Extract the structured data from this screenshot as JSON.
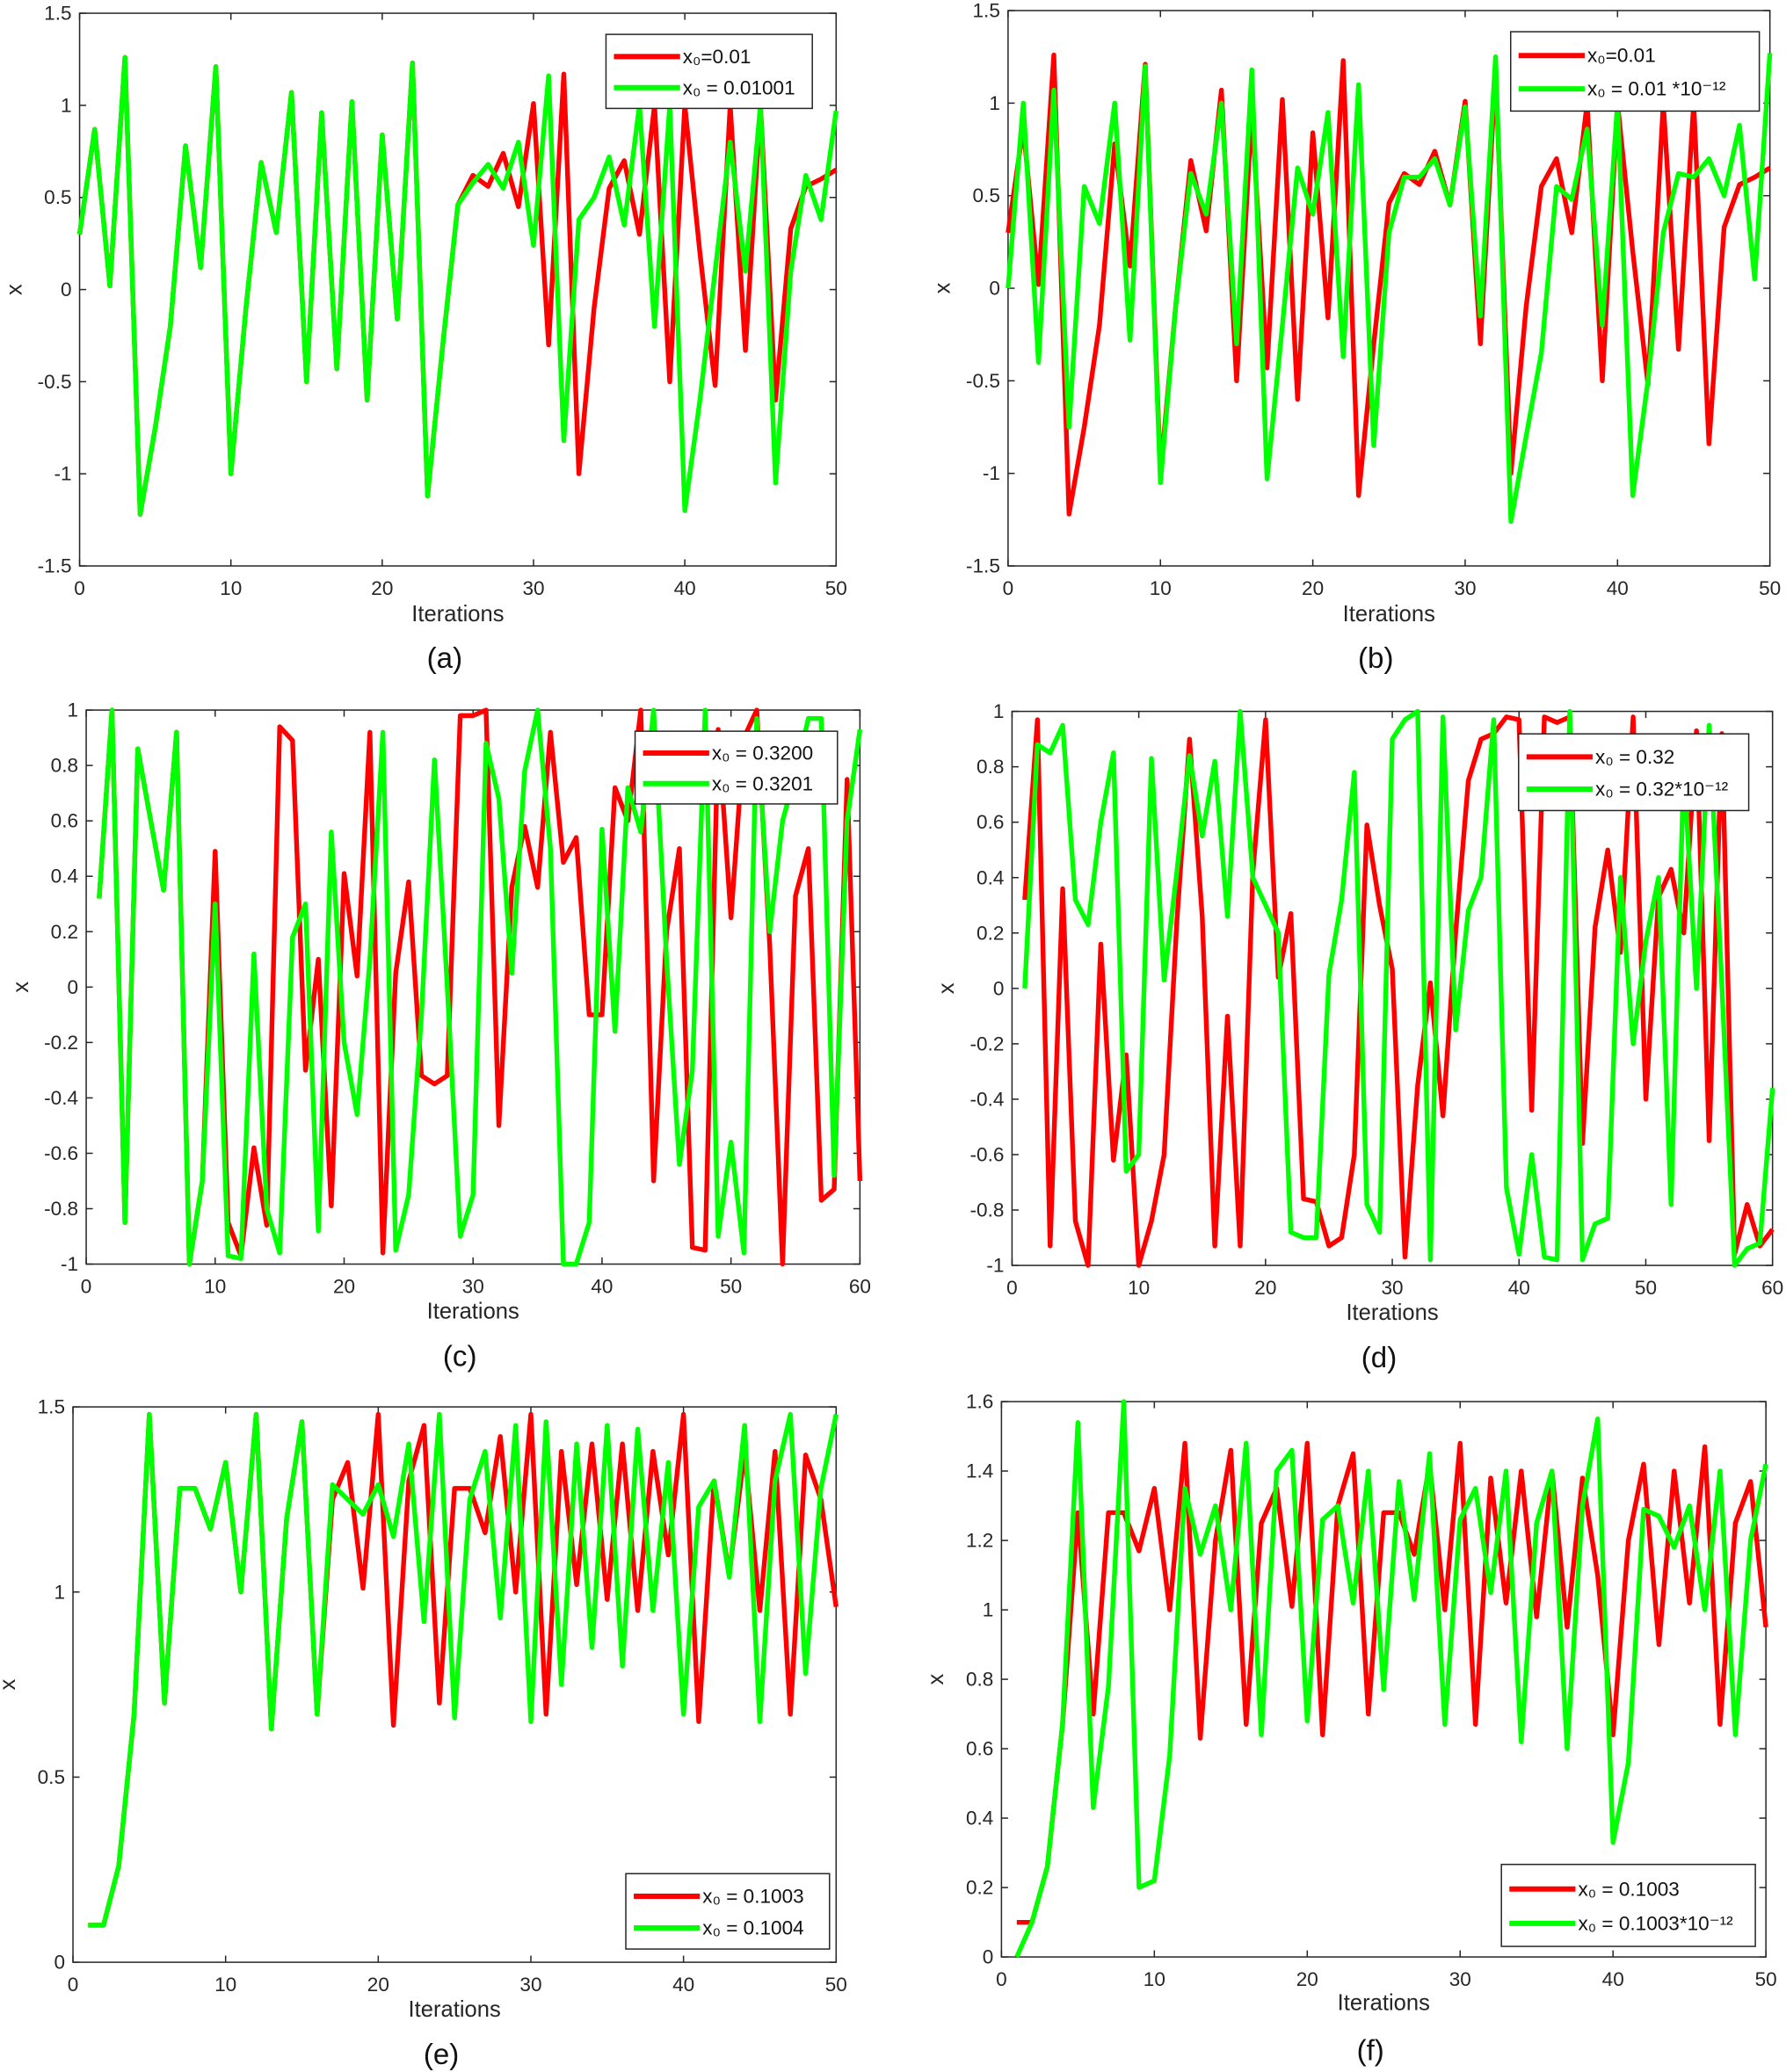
{
  "colors": {
    "series1": "#ff0000",
    "series2": "#00ff00",
    "axes": "#262626"
  },
  "chart_data": [
    {
      "type": "line",
      "caption": "(a)",
      "xlabel": "Iterations",
      "ylabel": "x",
      "xlim": [
        0,
        50
      ],
      "ylim": [
        -1.5,
        1.5
      ],
      "xticks": [
        0,
        10,
        20,
        30,
        40,
        50
      ],
      "yticks": [
        -1.5,
        -1,
        -0.5,
        0,
        0.5,
        1,
        1.5
      ],
      "legend_position": "top-right",
      "grid": false,
      "series": [
        {
          "name": "x₀=0.01",
          "color": "#ff0000",
          "x_start": 0,
          "values": [
            0.3,
            0.87,
            0.02,
            1.26,
            -1.22,
            -0.75,
            -0.2,
            0.78,
            0.12,
            1.21,
            -1.0,
            -0.1,
            0.69,
            0.31,
            1.07,
            -0.5,
            0.96,
            -0.43,
            1.02,
            -0.6,
            0.84,
            -0.16,
            1.23,
            -1.12,
            -0.3,
            0.46,
            0.62,
            0.56,
            0.74,
            0.45,
            1.01,
            -0.3,
            1.17,
            -1.0,
            -0.1,
            0.55,
            0.7,
            0.3,
            1.0,
            -0.5,
            1.0,
            0.2,
            -0.52,
            1.0,
            -0.33,
            1.0,
            -0.6,
            0.33,
            0.56,
            0.6,
            0.65
          ]
        },
        {
          "name": "x₀ = 0.01001",
          "color": "#00ff00",
          "x_start": 0,
          "values": [
            0.3,
            0.87,
            0.02,
            1.26,
            -1.22,
            -0.75,
            -0.2,
            0.78,
            0.12,
            1.21,
            -1.0,
            -0.1,
            0.69,
            0.31,
            1.07,
            -0.5,
            0.96,
            -0.43,
            1.02,
            -0.6,
            0.84,
            -0.16,
            1.23,
            -1.12,
            -0.3,
            0.46,
            0.58,
            0.68,
            0.55,
            0.8,
            0.24,
            1.16,
            -0.82,
            0.38,
            0.5,
            0.72,
            0.35,
            1.0,
            -0.2,
            1.0,
            -1.2,
            -0.6,
            0.1,
            0.8,
            0.1,
            1.0,
            -1.05,
            0.1,
            0.62,
            0.38,
            0.97
          ]
        }
      ]
    },
    {
      "type": "line",
      "caption": "(b)",
      "xlabel": "Iterations",
      "ylabel": "x",
      "xlim": [
        0,
        50
      ],
      "ylim": [
        -1.5,
        1.5
      ],
      "xticks": [
        0,
        10,
        20,
        30,
        40,
        50
      ],
      "yticks": [
        -1.5,
        -1,
        -0.5,
        0,
        0.5,
        1,
        1.5
      ],
      "legend_position": "top-right",
      "grid": false,
      "series": [
        {
          "name": "x₀=0.01",
          "color": "#ff0000",
          "x_start": 0,
          "values": [
            0.3,
            0.87,
            0.02,
            1.26,
            -1.22,
            -0.75,
            -0.2,
            0.78,
            0.12,
            1.21,
            -1.0,
            -0.1,
            0.69,
            0.31,
            1.07,
            -0.5,
            0.96,
            -0.43,
            1.02,
            -0.6,
            0.84,
            -0.16,
            1.23,
            -1.12,
            -0.3,
            0.46,
            0.62,
            0.56,
            0.74,
            0.45,
            1.01,
            -0.3,
            1.17,
            -1.0,
            -0.1,
            0.55,
            0.7,
            0.3,
            1.0,
            -0.5,
            1.0,
            0.2,
            -0.52,
            1.0,
            -0.33,
            1.0,
            -0.84,
            0.33,
            0.56,
            0.6,
            0.65
          ]
        },
        {
          "name": "x₀ = 0.01 *10⁻¹²",
          "color": "#00ff00",
          "x_start": 0,
          "values": [
            0.0,
            1.0,
            -0.4,
            1.07,
            -0.75,
            0.55,
            0.35,
            1.0,
            -0.28,
            1.2,
            -1.05,
            -0.1,
            0.62,
            0.4,
            1.0,
            -0.3,
            1.18,
            -1.03,
            -0.2,
            0.65,
            0.4,
            0.95,
            -0.37,
            1.1,
            -0.85,
            0.3,
            0.6,
            0.6,
            0.7,
            0.45,
            0.98,
            -0.15,
            1.25,
            -1.26,
            -0.8,
            -0.35,
            0.55,
            0.48,
            0.86,
            -0.2,
            1.0,
            -1.12,
            -0.5,
            0.3,
            0.62,
            0.6,
            0.7,
            0.5,
            0.88,
            0.05,
            1.27
          ]
        }
      ]
    },
    {
      "type": "line",
      "caption": "(c)",
      "xlabel": "Iterations",
      "ylabel": "x",
      "xlim": [
        0,
        60
      ],
      "ylim": [
        -1,
        1
      ],
      "xticks": [
        0,
        10,
        20,
        30,
        40,
        50,
        60
      ],
      "yticks": [
        -1,
        -0.8,
        -0.6,
        -0.4,
        -0.2,
        0,
        0.2,
        0.4,
        0.6,
        0.8,
        1
      ],
      "legend_position": "top-right",
      "grid": false,
      "series": [
        {
          "name": "x₀ = 0.3200",
          "color": "#ff0000",
          "x_start": 1,
          "values": [
            0.32,
            1.0,
            -0.85,
            0.86,
            0.6,
            0.35,
            0.92,
            -1.0,
            -0.7,
            0.49,
            -0.85,
            -0.97,
            -0.58,
            -0.86,
            0.94,
            0.89,
            -0.3,
            0.1,
            -0.79,
            0.41,
            0.04,
            0.92,
            -0.96,
            0.05,
            0.38,
            -0.32,
            -0.35,
            -0.32,
            0.98,
            0.98,
            1.0,
            -0.5,
            0.36,
            0.58,
            0.36,
            0.92,
            0.45,
            0.54,
            -0.1,
            -0.1,
            0.72,
            0.6,
            1.0,
            -0.7,
            0.2,
            0.5,
            -0.94,
            -0.95,
            0.93,
            0.25,
            0.9,
            1.0,
            0.15,
            -1.0,
            0.33,
            0.5,
            -0.77,
            -0.73,
            0.75,
            -0.7
          ]
        },
        {
          "name": "x₀ = 0.3201",
          "color": "#00ff00",
          "x_start": 1,
          "values": [
            0.32,
            1.0,
            -0.85,
            0.86,
            0.6,
            0.35,
            0.92,
            -1.0,
            -0.7,
            0.3,
            -0.97,
            -0.98,
            0.12,
            -0.8,
            -0.96,
            0.18,
            0.3,
            -0.88,
            0.56,
            -0.2,
            -0.46,
            0.1,
            0.92,
            -0.95,
            -0.75,
            -0.1,
            0.82,
            0.0,
            -0.9,
            -0.75,
            0.88,
            0.68,
            0.05,
            0.78,
            1.0,
            0.5,
            -1.0,
            -1.0,
            -0.85,
            0.57,
            -0.16,
            0.72,
            0.56,
            1.0,
            0.1,
            -0.64,
            -0.3,
            1.0,
            -0.9,
            -0.56,
            -0.96,
            0.97,
            0.2,
            0.6,
            0.77,
            0.97,
            0.97,
            -0.68,
            0.6,
            0.93
          ]
        }
      ]
    },
    {
      "type": "line",
      "caption": "(d)",
      "xlabel": "Iterations",
      "ylabel": "x",
      "xlim": [
        0,
        60
      ],
      "ylim": [
        -1,
        1
      ],
      "xticks": [
        0,
        10,
        20,
        30,
        40,
        50,
        60
      ],
      "yticks": [
        -1,
        -0.8,
        -0.6,
        -0.4,
        -0.2,
        0,
        0.2,
        0.4,
        0.6,
        0.8,
        1
      ],
      "legend_position": "top-right",
      "grid": false,
      "series": [
        {
          "name": "x₀ = 0.32",
          "color": "#ff0000",
          "x_start": 1,
          "values": [
            0.32,
            0.97,
            -0.93,
            0.36,
            -0.84,
            -1.0,
            0.16,
            -0.62,
            -0.24,
            -1.0,
            -0.84,
            -0.6,
            0.24,
            0.9,
            0.26,
            -0.93,
            -0.1,
            -0.93,
            0.42,
            0.97,
            0.04,
            0.27,
            -0.76,
            -0.77,
            -0.93,
            -0.9,
            -0.6,
            0.59,
            0.3,
            0.07,
            -0.97,
            -0.35,
            0.02,
            -0.46,
            0.2,
            0.75,
            0.9,
            0.92,
            0.98,
            0.97,
            -0.44,
            0.98,
            0.96,
            0.98,
            -0.56,
            0.22,
            0.5,
            0.13,
            0.98,
            -0.4,
            0.33,
            0.43,
            0.2,
            0.93,
            -0.55,
            0.92,
            -0.96,
            -0.78,
            -0.93,
            -0.87
          ]
        },
        {
          "name": "x₀ = 0.32*10⁻¹²",
          "color": "#00ff00",
          "x_start": 1,
          "values": [
            0.0,
            0.88,
            0.85,
            0.95,
            0.32,
            0.23,
            0.6,
            0.85,
            -0.66,
            -0.6,
            0.83,
            0.03,
            0.42,
            0.84,
            0.55,
            0.82,
            0.26,
            1.0,
            0.4,
            0.3,
            0.2,
            -0.88,
            -0.9,
            -0.9,
            0.05,
            0.32,
            0.78,
            -0.78,
            -0.88,
            0.9,
            0.97,
            1.0,
            -0.98,
            0.98,
            -0.15,
            0.28,
            0.4,
            0.97,
            -0.72,
            -0.96,
            -0.6,
            -0.97,
            -0.98,
            1.0,
            -0.98,
            -0.85,
            -0.83,
            0.4,
            -0.2,
            0.17,
            0.4,
            -0.78,
            0.8,
            0.0,
            0.95,
            0.01,
            -1.0,
            -0.94,
            -0.92,
            -0.36
          ]
        }
      ]
    },
    {
      "type": "line",
      "caption": "(e)",
      "xlabel": "Iterations",
      "ylabel": "x",
      "xlim": [
        0,
        50
      ],
      "ylim": [
        0,
        1.5
      ],
      "xticks": [
        0,
        10,
        20,
        30,
        40,
        50
      ],
      "yticks": [
        0,
        0.5,
        1,
        1.5
      ],
      "legend_position": "bottom-right",
      "grid": false,
      "series": [
        {
          "name": "x₀ = 0.1003",
          "color": "#ff0000",
          "x_start": 1,
          "values": [
            0.1,
            0.1,
            0.26,
            0.67,
            1.48,
            0.7,
            1.28,
            1.28,
            1.17,
            1.35,
            1.0,
            1.48,
            0.63,
            1.2,
            1.46,
            0.67,
            1.25,
            1.35,
            1.01,
            1.48,
            0.64,
            1.3,
            1.45,
            0.7,
            1.28,
            1.28,
            1.16,
            1.42,
            1.0,
            1.48,
            0.67,
            1.38,
            1.02,
            1.4,
            0.98,
            1.4,
            0.95,
            1.38,
            1.1,
            1.48,
            0.65,
            1.3,
            1.05,
            1.38,
            0.95,
            1.38,
            0.67,
            1.37,
            1.25,
            0.96
          ]
        },
        {
          "name": "x₀ = 0.1004",
          "color": "#00ff00",
          "x_start": 1,
          "values": [
            0.1,
            0.1,
            0.26,
            0.67,
            1.48,
            0.7,
            1.28,
            1.28,
            1.17,
            1.35,
            1.0,
            1.48,
            0.63,
            1.2,
            1.46,
            0.67,
            1.29,
            1.25,
            1.21,
            1.29,
            1.15,
            1.4,
            0.92,
            1.48,
            0.66,
            1.25,
            1.38,
            0.93,
            1.45,
            0.65,
            1.46,
            0.75,
            1.4,
            0.85,
            1.45,
            0.8,
            1.44,
            0.95,
            1.35,
            0.67,
            1.23,
            1.3,
            1.04,
            1.45,
            0.65,
            1.3,
            1.48,
            0.78,
            1.28,
            1.48
          ]
        }
      ]
    },
    {
      "type": "line",
      "caption": "(f)",
      "xlabel": "Iterations",
      "ylabel": "x",
      "xlim": [
        0,
        50
      ],
      "ylim": [
        0,
        1.6
      ],
      "xticks": [
        0,
        10,
        20,
        30,
        40,
        50
      ],
      "yticks": [
        0,
        0.2,
        0.4,
        0.6,
        0.8,
        1,
        1.2,
        1.4,
        1.6
      ],
      "legend_position": "bottom-right",
      "grid": false,
      "series": [
        {
          "name": "x₀ = 0.1003",
          "color": "#ff0000",
          "x_start": 1,
          "values": [
            0.1,
            0.1,
            0.26,
            0.67,
            1.28,
            0.7,
            1.28,
            1.28,
            1.17,
            1.35,
            1.0,
            1.48,
            0.63,
            1.2,
            1.46,
            0.67,
            1.25,
            1.35,
            1.01,
            1.48,
            0.64,
            1.3,
            1.45,
            0.7,
            1.28,
            1.28,
            1.16,
            1.42,
            1.0,
            1.48,
            0.67,
            1.38,
            1.02,
            1.4,
            0.98,
            1.4,
            0.95,
            1.38,
            1.1,
            0.64,
            1.2,
            1.42,
            0.9,
            1.4,
            1.02,
            1.47,
            0.67,
            1.25,
            1.37,
            0.95
          ]
        },
        {
          "name": "x₀ = 0.1003*10⁻¹²",
          "color": "#00ff00",
          "x_start": 1,
          "values": [
            0.0,
            0.1,
            0.26,
            0.67,
            1.54,
            0.43,
            0.78,
            1.6,
            0.2,
            0.22,
            0.58,
            1.35,
            1.16,
            1.3,
            1.0,
            1.48,
            0.64,
            1.4,
            1.46,
            0.68,
            1.26,
            1.3,
            1.02,
            1.4,
            0.77,
            1.37,
            1.03,
            1.45,
            0.67,
            1.26,
            1.35,
            1.05,
            1.4,
            0.62,
            1.25,
            1.4,
            0.6,
            1.3,
            1.55,
            0.33,
            0.56,
            1.29,
            1.27,
            1.18,
            1.3,
            1.0,
            1.4,
            0.64,
            1.2,
            1.42
          ]
        }
      ]
    }
  ]
}
